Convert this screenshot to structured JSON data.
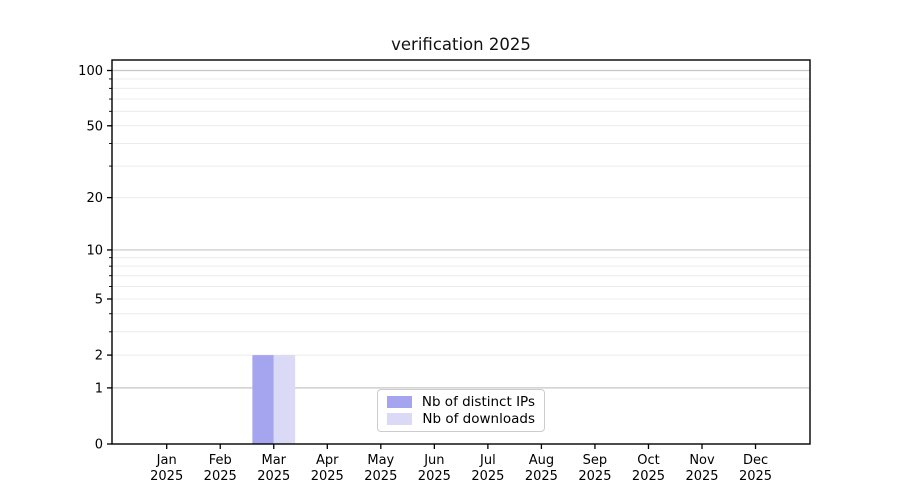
{
  "chart_data": {
    "type": "bar",
    "title": "verification 2025",
    "categories": [
      "Jan",
      "Feb",
      "Mar",
      "Apr",
      "May",
      "Jun",
      "Jul",
      "Aug",
      "Sep",
      "Oct",
      "Nov",
      "Dec"
    ],
    "category_year_line": "2025",
    "series": [
      {
        "name": "Nb of distinct IPs",
        "color": "#a5a5ef",
        "values": [
          0,
          0,
          2,
          0,
          0,
          0,
          0,
          0,
          0,
          0,
          0,
          0
        ]
      },
      {
        "name": "Nb of downloads",
        "color": "#dadaf7",
        "values": [
          0,
          0,
          2,
          0,
          0,
          0,
          0,
          0,
          0,
          0,
          0,
          0
        ]
      }
    ],
    "yscale": "log1p",
    "ylim": [
      0,
      114
    ],
    "y_major_ticks": [
      0,
      1,
      2,
      5,
      10,
      20,
      50,
      100
    ],
    "y_decade_gridlines": [
      1,
      10,
      100
    ],
    "y_minor_gridlines": [
      2,
      3,
      4,
      5,
      6,
      7,
      8,
      9,
      20,
      30,
      40,
      50,
      60,
      70,
      80,
      90
    ],
    "grid": true,
    "legend_position": "inside lower center",
    "colors": {
      "axis": "#000000",
      "grid_major": "#c6c6c6",
      "grid_minor": "#ececec",
      "text": "#000000"
    }
  }
}
